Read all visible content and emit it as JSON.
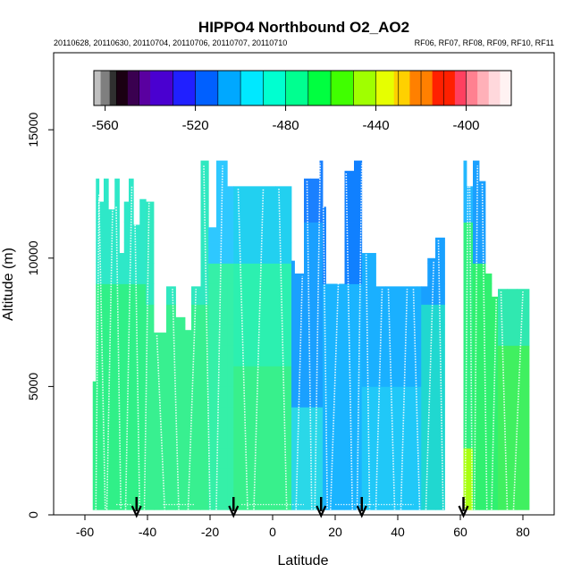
{
  "chart_data": {
    "type": "heatmap",
    "title": "HIPPO4 Northbound O2_AO2",
    "dates_label": "20110628, 20110630, 20110704, 20110706, 20110707, 20110710",
    "flights_label": "RF06, RF07, RF08, RF09, RF10, RF11",
    "xlabel": "Latitude",
    "ylabel": "Altitude (m)",
    "xlim": [
      -70,
      90
    ],
    "ylim": [
      0,
      18000
    ],
    "x_ticks": [
      -60,
      -40,
      -20,
      0,
      20,
      40,
      60,
      80
    ],
    "x_tick_labels": [
      "-60",
      "-40",
      "-20",
      "0",
      "20",
      "40",
      "60",
      "80"
    ],
    "y_ticks": [
      0,
      5000,
      10000,
      15000
    ],
    "y_tick_labels": [
      "0",
      "5000",
      "10000",
      "15000"
    ],
    "colorbar": {
      "min": -565,
      "max": -380,
      "ticks": [
        -560,
        -520,
        -480,
        -440,
        -400
      ],
      "tick_labels": [
        "-560",
        "-520",
        "-480",
        "-440",
        "-400"
      ],
      "colors": [
        "#bfbfbf",
        "#7f7f7f",
        "#303030",
        "#1a0012",
        "#3a0050",
        "#5a00a0",
        "#4a00d0",
        "#2020ff",
        "#0060ff",
        "#00a8ff",
        "#00e8ff",
        "#00ffd0",
        "#00ff90",
        "#00ff40",
        "#40ff00",
        "#a0ff00",
        "#e6ff00",
        "#ffd000",
        "#ff8000",
        "#ff2000",
        "#ff4060",
        "#ff8090",
        "#ffb0b8",
        "#ffd8dc",
        "#fff2f2"
      ],
      "edges": [
        -565,
        -562,
        -558,
        -555,
        -550,
        -545,
        -540,
        -530,
        -520,
        -510,
        -500,
        -490,
        -480,
        -470,
        -460,
        -450,
        -440,
        -432,
        -425,
        -415,
        -405,
        -400,
        -395,
        -390,
        -385,
        -380
      ]
    },
    "flight_end_markers": [
      -43.5,
      -12.5,
      15.5,
      28.5,
      61
    ]
  }
}
